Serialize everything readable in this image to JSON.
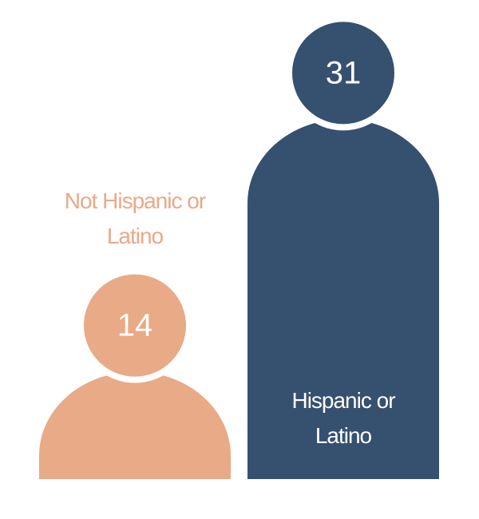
{
  "chart_data": {
    "type": "pictograph",
    "categories": [
      "Not Hispanic or Latino",
      "Hispanic or Latino"
    ],
    "values": [
      14,
      31
    ],
    "colors": [
      "#e8aa87",
      "#36506f"
    ]
  }
}
